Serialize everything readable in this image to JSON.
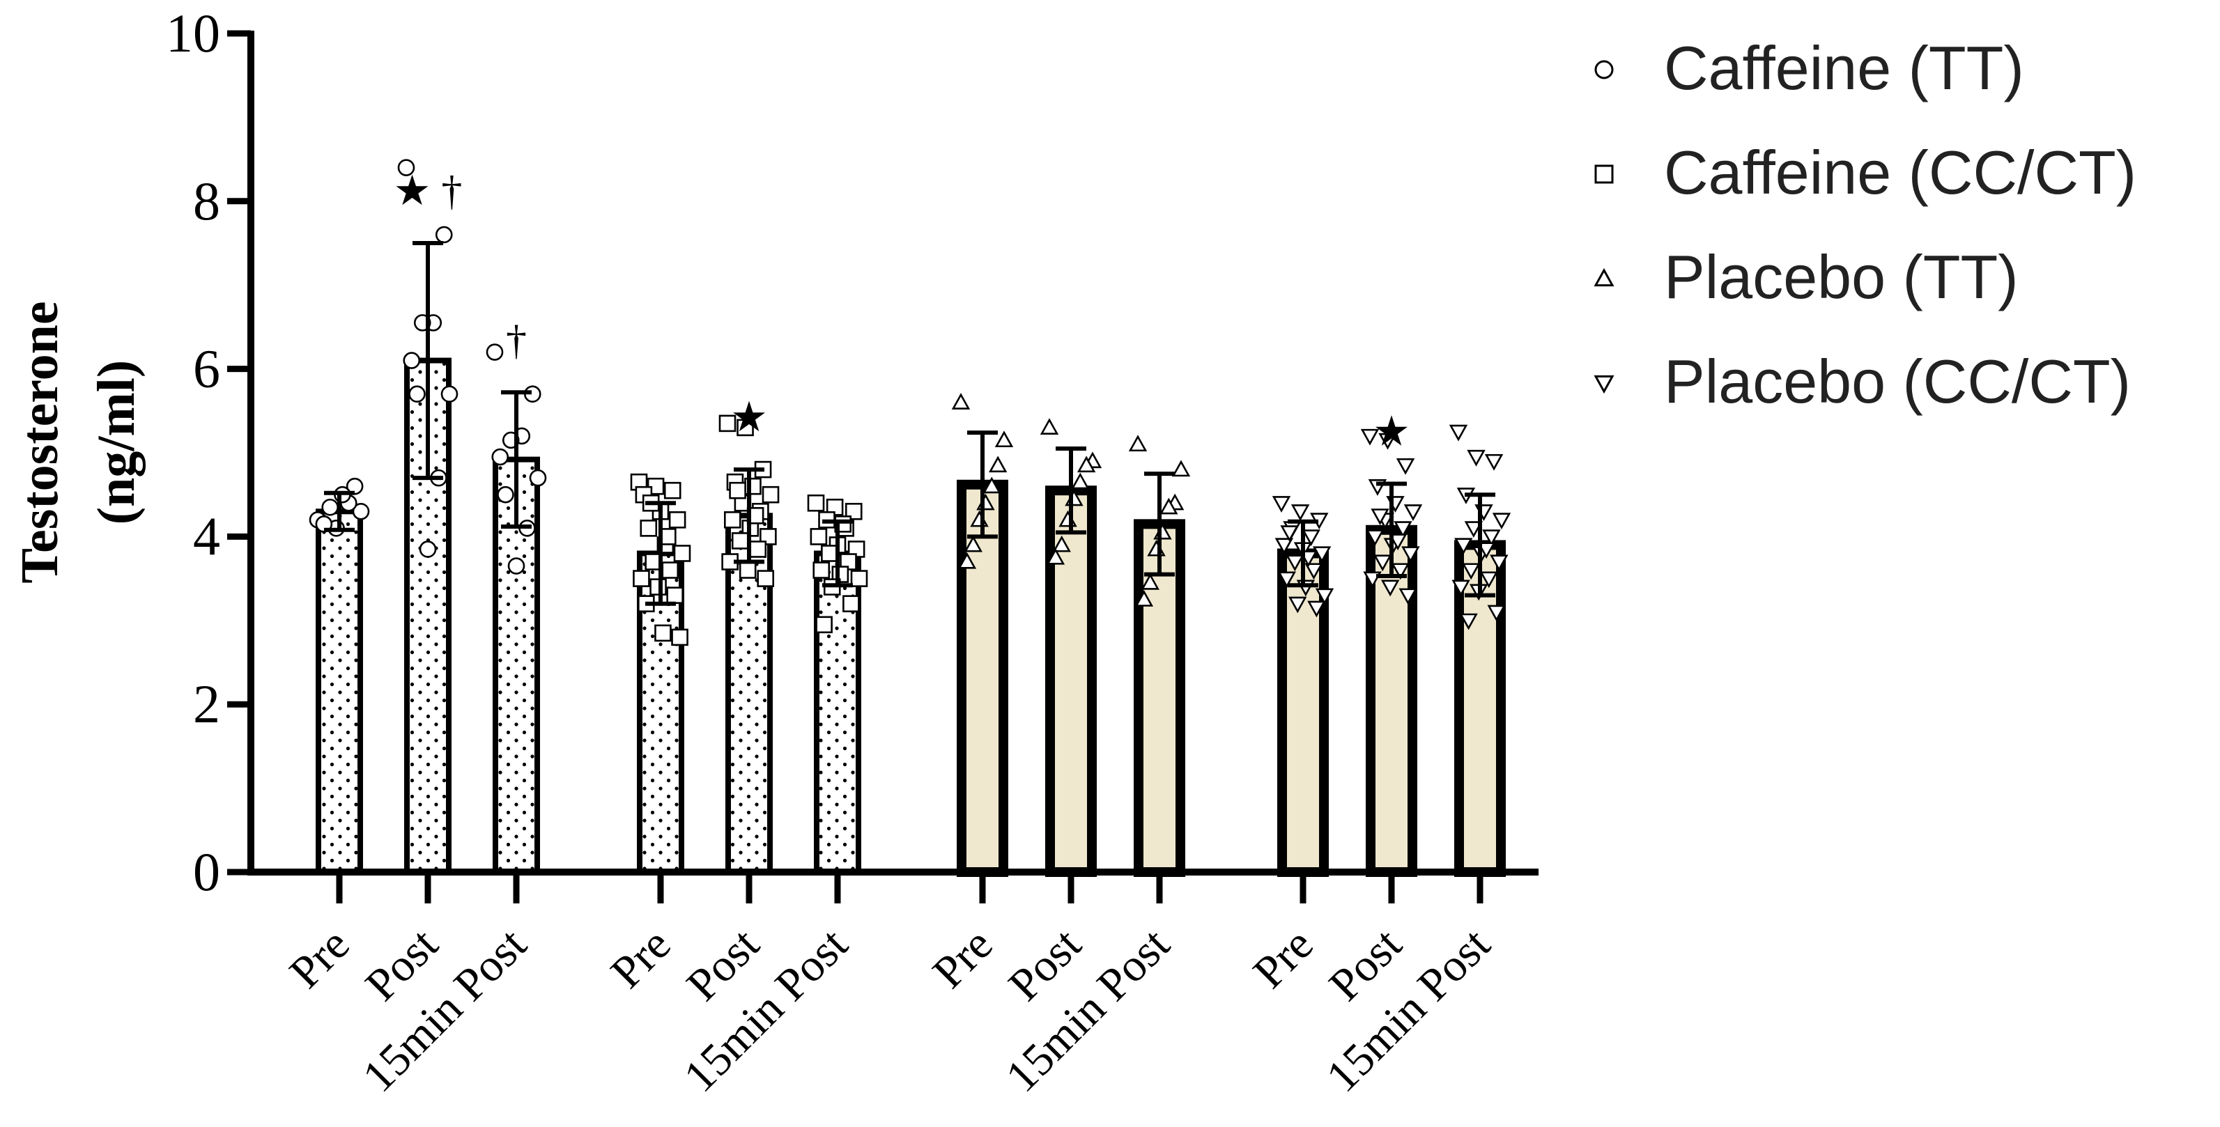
{
  "chart_data": {
    "type": "bar",
    "ylabel_line1": "Testosterone",
    "ylabel_line2": "(ng/ml)",
    "ylim": [
      0,
      10
    ],
    "yticks": [
      "0",
      "2",
      "4",
      "6",
      "8",
      "10"
    ],
    "timepoints": [
      "Pre",
      "Post",
      "15min Post"
    ],
    "colors": {
      "pattern_fill": "#ffffff",
      "placebo_fill": "#efe8cf",
      "ink": "#000000"
    },
    "groups": [
      {
        "name": "Caffeine (TT)",
        "marker": "circle",
        "marker_symbol": "○",
        "fill": "dotted",
        "bars": [
          {
            "label": "Pre",
            "mean": 4.3,
            "sd": 0.22,
            "annotation": "",
            "points": [
              4.2,
              4.3,
              4.6,
              4.4,
              4.5,
              4.1,
              4.35,
              4.15
            ]
          },
          {
            "label": "Post",
            "mean": 6.1,
            "sd": 1.4,
            "annotation": "★ †",
            "points": [
              8.4,
              7.6,
              6.55,
              6.55,
              6.1,
              5.7,
              4.7,
              3.85,
              5.7
            ]
          },
          {
            "label": "15min Post",
            "mean": 4.92,
            "sd": 0.8,
            "annotation": "†",
            "points": [
              6.2,
              5.7,
              5.2,
              5.15,
              4.95,
              4.7,
              4.1,
              3.65,
              4.5
            ]
          }
        ]
      },
      {
        "name": "Caffeine (CC/CT)",
        "marker": "square",
        "marker_symbol": "□",
        "fill": "dotted",
        "bars": [
          {
            "label": "Pre",
            "mean": 3.8,
            "sd": 0.6,
            "annotation": "",
            "points": [
              4.65,
              4.6,
              4.55,
              4.5,
              4.3,
              4.2,
              4.1,
              3.9,
              3.8,
              3.7,
              3.6,
              3.5,
              3.4,
              3.3,
              3.2,
              2.85,
              2.8,
              4.4,
              4.0
            ]
          },
          {
            "label": "Post",
            "mean": 4.25,
            "sd": 0.55,
            "annotation": "★",
            "points": [
              5.35,
              5.3,
              4.8,
              4.65,
              4.6,
              4.5,
              4.4,
              4.3,
              4.2,
              4.1,
              4.0,
              3.95,
              3.85,
              3.7,
              3.6,
              3.5,
              4.55,
              4.25
            ]
          },
          {
            "label": "15min Post",
            "mean": 3.8,
            "sd": 0.38,
            "annotation": "",
            "points": [
              4.4,
              4.35,
              4.3,
              4.2,
              4.1,
              4.0,
              3.9,
              3.85,
              3.8,
              3.7,
              3.6,
              3.55,
              3.5,
              3.4,
              3.2,
              2.95,
              4.15
            ]
          }
        ]
      },
      {
        "name": "Placebo (TT)",
        "marker": "triangle-up",
        "marker_symbol": "△",
        "fill": "tan",
        "bars": [
          {
            "label": "Pre",
            "mean": 4.62,
            "sd": 0.62,
            "annotation": "",
            "points": [
              5.6,
              5.15,
              4.85,
              4.6,
              4.4,
              4.2,
              3.9,
              3.7
            ]
          },
          {
            "label": "Post",
            "mean": 4.55,
            "sd": 0.5,
            "annotation": "",
            "points": [
              5.3,
              4.9,
              4.85,
              4.65,
              4.45,
              4.2,
              3.9,
              3.75
            ]
          },
          {
            "label": "15min Post",
            "mean": 4.15,
            "sd": 0.6,
            "annotation": "",
            "points": [
              5.1,
              4.8,
              4.4,
              4.35,
              4.05,
              3.85,
              3.45,
              3.25
            ]
          }
        ]
      },
      {
        "name": "Placebo (CC/CT)",
        "marker": "triangle-down",
        "marker_symbol": "▽",
        "fill": "tan",
        "bars": [
          {
            "label": "Pre",
            "mean": 3.8,
            "sd": 0.38,
            "annotation": "",
            "points": [
              4.4,
              4.3,
              4.2,
              4.1,
              4.0,
              3.9,
              3.85,
              3.8,
              3.7,
              3.6,
              3.5,
              3.4,
              3.3,
              3.2,
              3.15,
              4.05,
              3.75
            ]
          },
          {
            "label": "Post",
            "mean": 4.08,
            "sd": 0.55,
            "annotation": "★",
            "points": [
              5.2,
              5.15,
              4.85,
              4.6,
              4.4,
              4.3,
              4.2,
              4.1,
              4.0,
              3.9,
              3.8,
              3.7,
              3.6,
              3.5,
              3.4,
              3.3,
              4.25,
              3.95
            ]
          },
          {
            "label": "15min Post",
            "mean": 3.9,
            "sd": 0.6,
            "annotation": "",
            "points": [
              5.25,
              4.95,
              4.9,
              4.5,
              4.3,
              4.2,
              4.1,
              4.0,
              3.9,
              3.8,
              3.7,
              3.6,
              3.5,
              3.4,
              3.35,
              3.1,
              3.0,
              3.85
            ]
          }
        ]
      }
    ]
  }
}
